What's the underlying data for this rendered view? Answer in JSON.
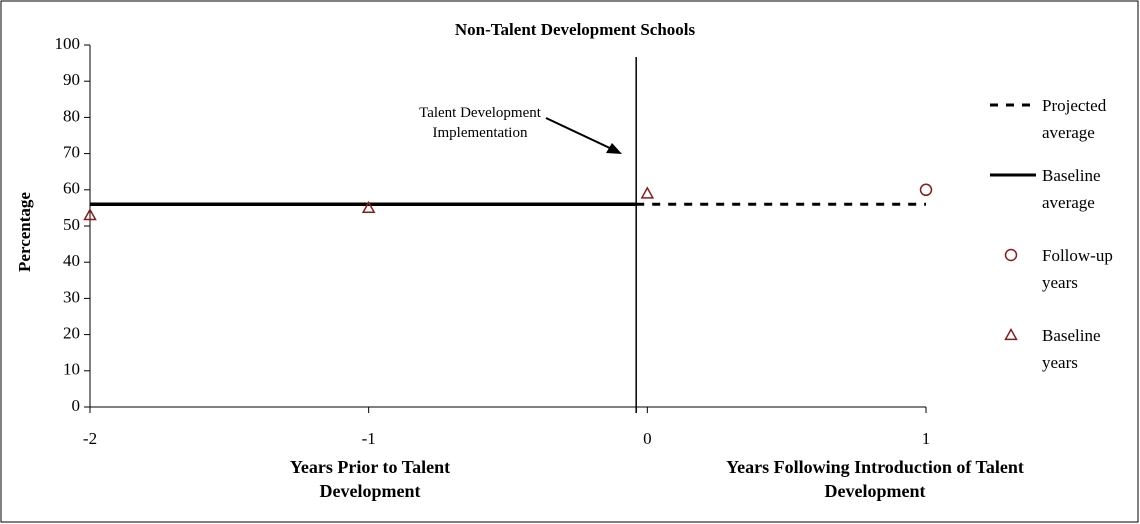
{
  "chart_data": {
    "type": "line",
    "title": "Non-Talent Development Schools",
    "ylabel": "Percentage",
    "xlabel_left": "Years Prior to Talent Development",
    "xlabel_right": "Years Following Introduction of Talent Development",
    "annotation": "Talent Development Implementation",
    "implementation_x": -0.04,
    "xlim": [
      -2,
      1
    ],
    "xticks": [
      -2,
      -1,
      0,
      1
    ],
    "ylim": [
      0,
      100
    ],
    "yticks": [
      0,
      10,
      20,
      30,
      40,
      50,
      60,
      70,
      80,
      90,
      100
    ],
    "legend": "right",
    "series": [
      {
        "name": "Projected average",
        "color": "#000000",
        "style": "dashed",
        "marker": "none",
        "x": [
          -0.04,
          1
        ],
        "values": [
          56,
          56
        ]
      },
      {
        "name": "Baseline average",
        "color": "#000000",
        "style": "solid",
        "marker": "none",
        "x": [
          -2,
          -0.04
        ],
        "values": [
          56,
          56
        ]
      },
      {
        "name": "Follow-up years",
        "color": "#8b1a1a",
        "style": "none",
        "marker": "circle",
        "x": [
          1
        ],
        "values": [
          60
        ]
      },
      {
        "name": "Baseline years",
        "color": "#8b1a1a",
        "style": "none",
        "marker": "triangle",
        "x": [
          -2,
          -1,
          0
        ],
        "values": [
          53,
          55,
          59
        ]
      }
    ]
  }
}
